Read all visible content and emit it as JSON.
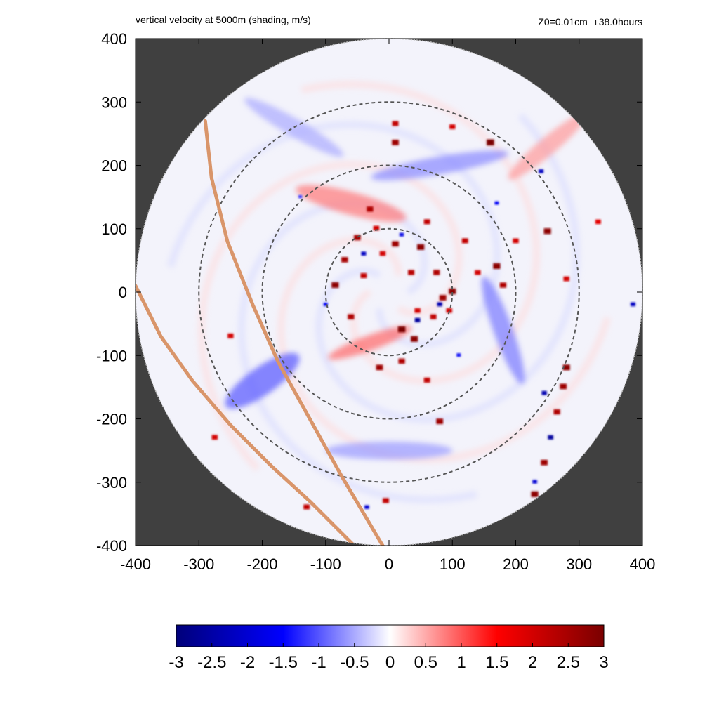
{
  "header": {
    "title": "vertical velocity at 5000m (shading, m/s)",
    "info": "Z0=0.01cm  +38.0hours"
  },
  "chart_data": {
    "type": "heatmap",
    "title": "vertical velocity at 5000m (shading, m/s)",
    "annotation": "Z0=0.01cm  +38.0hours",
    "xlabel": "",
    "ylabel": "",
    "xlim": [
      -400,
      400
    ],
    "ylim": [
      -400,
      400
    ],
    "x_ticks": [
      -400,
      -300,
      -200,
      -100,
      0,
      100,
      200,
      300,
      400
    ],
    "y_ticks": [
      400,
      300,
      200,
      100,
      0,
      -100,
      -200,
      -300,
      -400
    ],
    "domain_radius": 400,
    "dashed_rings": [
      100,
      200,
      300
    ],
    "background_color": "#404040",
    "colorbar": {
      "min": -3,
      "max": 3,
      "ticks": [
        "-3",
        "-2.5",
        "-2",
        "-1.5",
        "-1",
        "-0.5",
        "0",
        "0.5",
        "1",
        "1.5",
        "2",
        "2.5",
        "3"
      ],
      "colors": [
        "#00007a",
        "#0000ff",
        "#ffffff",
        "#ff0000",
        "#7a0000"
      ]
    },
    "tracks": [
      {
        "color": "#d9956a",
        "points": [
          [
            -290,
            270
          ],
          [
            -280,
            180
          ],
          [
            -255,
            80
          ],
          [
            -215,
            -20
          ],
          [
            -175,
            -110
          ],
          [
            -125,
            -200
          ],
          [
            -75,
            -290
          ],
          [
            -10,
            -400
          ]
        ]
      },
      {
        "color": "#d9956a",
        "points": [
          [
            -400,
            10
          ],
          [
            -360,
            -70
          ],
          [
            -310,
            -140
          ],
          [
            -250,
            -210
          ],
          [
            -185,
            -275
          ],
          [
            -125,
            -330
          ],
          [
            -55,
            -400
          ]
        ]
      }
    ],
    "updraft_cells": [
      {
        "x": 20,
        "y": -60,
        "w": 3.0
      },
      {
        "x": 40,
        "y": -75,
        "w": 2.8
      },
      {
        "x": -15,
        "y": -120,
        "w": 2.6
      },
      {
        "x": 20,
        "y": -110,
        "w": 2.4
      },
      {
        "x": -85,
        "y": 10,
        "w": 2.8
      },
      {
        "x": -70,
        "y": 50,
        "w": 2.5
      },
      {
        "x": -50,
        "y": 85,
        "w": 2.5
      },
      {
        "x": -40,
        "y": 25,
        "w": 2.2
      },
      {
        "x": 10,
        "y": 75,
        "w": 2.6
      },
      {
        "x": 50,
        "y": 70,
        "w": 2.8
      },
      {
        "x": 75,
        "y": 30,
        "w": 2.4
      },
      {
        "x": 85,
        "y": -10,
        "w": 2.6
      },
      {
        "x": 100,
        "y": 0,
        "w": 2.8
      },
      {
        "x": 70,
        "y": -40,
        "w": 2.2
      },
      {
        "x": 35,
        "y": 30,
        "w": 2.3
      },
      {
        "x": 60,
        "y": 110,
        "w": 2.2
      },
      {
        "x": 170,
        "y": 40,
        "w": 2.8
      },
      {
        "x": 180,
        "y": 10,
        "w": 2.4
      },
      {
        "x": 160,
        "y": 235,
        "w": 3.0
      },
      {
        "x": 250,
        "y": 95,
        "w": 2.8
      },
      {
        "x": 10,
        "y": 235,
        "w": 2.6
      },
      {
        "x": 10,
        "y": 265,
        "w": 2.2
      },
      {
        "x": 100,
        "y": 260,
        "w": 2.0
      },
      {
        "x": -30,
        "y": 130,
        "w": 2.4
      },
      {
        "x": -20,
        "y": 100,
        "w": 2.0
      },
      {
        "x": 280,
        "y": -120,
        "w": 2.8
      },
      {
        "x": 275,
        "y": -150,
        "w": 2.6
      },
      {
        "x": 265,
        "y": -190,
        "w": 2.4
      },
      {
        "x": 245,
        "y": -270,
        "w": 2.6
      },
      {
        "x": 230,
        "y": -320,
        "w": 2.8
      },
      {
        "x": 80,
        "y": -205,
        "w": 2.6
      },
      {
        "x": 60,
        "y": -140,
        "w": 2.2
      },
      {
        "x": -5,
        "y": -330,
        "w": 2.2
      },
      {
        "x": -130,
        "y": -340,
        "w": 2.2
      },
      {
        "x": -250,
        "y": -70,
        "w": 2.0
      },
      {
        "x": -275,
        "y": -230,
        "w": 2.0
      },
      {
        "x": 330,
        "y": 110,
        "w": 1.8
      },
      {
        "x": 280,
        "y": 20,
        "w": 2.0
      },
      {
        "x": 200,
        "y": 80,
        "w": 2.0
      },
      {
        "x": 120,
        "y": 80,
        "w": 2.2
      },
      {
        "x": 140,
        "y": 30,
        "w": 2.0
      },
      {
        "x": -60,
        "y": -40,
        "w": 2.4
      },
      {
        "x": -10,
        "y": 60,
        "w": 2.0
      },
      {
        "x": 95,
        "y": -30,
        "w": 2.0
      },
      {
        "x": 45,
        "y": -30,
        "w": 2.0
      }
    ],
    "downdraft_cells": [
      {
        "x": 45,
        "y": -45,
        "w": -2.6
      },
      {
        "x": 80,
        "y": -20,
        "w": -2.4
      },
      {
        "x": -40,
        "y": 60,
        "w": -2.2
      },
      {
        "x": 20,
        "y": 90,
        "w": -1.8
      },
      {
        "x": 240,
        "y": 190,
        "w": -2.2
      },
      {
        "x": 245,
        "y": -160,
        "w": -2.4
      },
      {
        "x": 255,
        "y": -230,
        "w": -2.6
      },
      {
        "x": 230,
        "y": -300,
        "w": -2.0
      },
      {
        "x": -35,
        "y": -340,
        "w": -2.0
      },
      {
        "x": 385,
        "y": -20,
        "w": -2.2
      },
      {
        "x": 170,
        "y": 140,
        "w": -1.6
      },
      {
        "x": -100,
        "y": -20,
        "w": -1.6
      },
      {
        "x": 110,
        "y": -100,
        "w": -1.6
      },
      {
        "x": -140,
        "y": 150,
        "w": -1.2
      }
    ],
    "bands": [
      {
        "x": -200,
        "y": -140,
        "rx": 70,
        "ry": 22,
        "rot": 35,
        "w": -1.0
      },
      {
        "x": -60,
        "y": 140,
        "rx": 90,
        "ry": 18,
        "rot": -15,
        "w": 0.8
      },
      {
        "x": 80,
        "y": 200,
        "rx": 110,
        "ry": 14,
        "rot": 10,
        "w": -0.7
      },
      {
        "x": 180,
        "y": -60,
        "rx": 90,
        "ry": 15,
        "rot": -70,
        "w": -0.8
      },
      {
        "x": -30,
        "y": -80,
        "rx": 70,
        "ry": 12,
        "rot": 20,
        "w": 0.9
      },
      {
        "x": 250,
        "y": 230,
        "rx": 80,
        "ry": 14,
        "rot": 40,
        "w": 0.6
      },
      {
        "x": 0,
        "y": -250,
        "rx": 100,
        "ry": 14,
        "rot": 0,
        "w": -0.6
      },
      {
        "x": -150,
        "y": 260,
        "rx": 90,
        "ry": 14,
        "rot": -30,
        "w": -0.5
      }
    ]
  }
}
